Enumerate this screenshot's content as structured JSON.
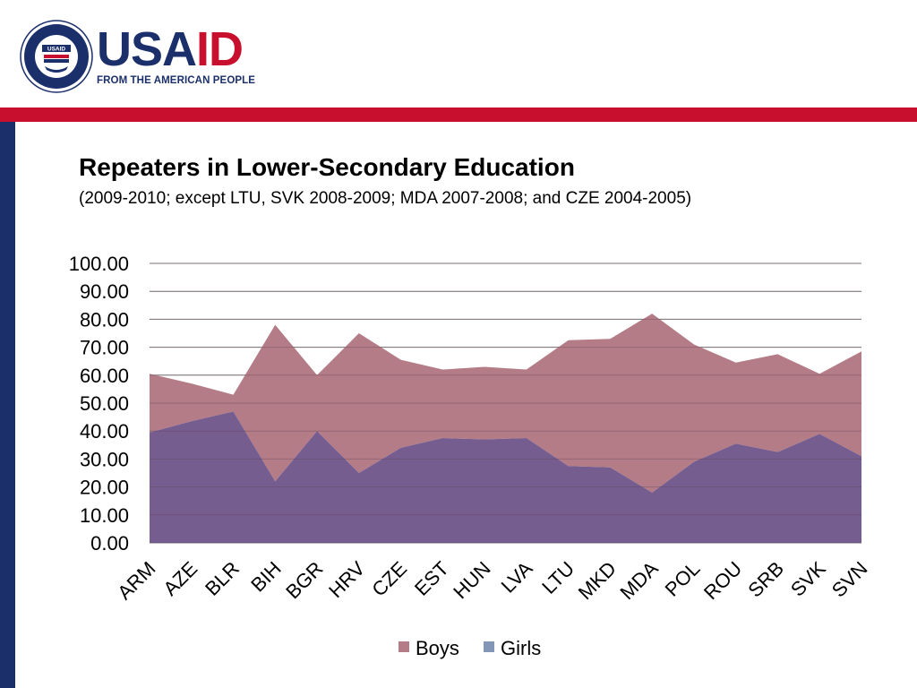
{
  "header": {
    "logo_alt": "USAID",
    "brand_usa": "USA",
    "brand_aid": "ID",
    "tagline": "FROM THE AMERICAN PEOPLE"
  },
  "colors": {
    "red": "#c8102e",
    "navy": "#1b2f6b",
    "boys": "#b47c86",
    "girls": "#765d90",
    "legend_girls": "#8496b8"
  },
  "chart_data": {
    "type": "area",
    "title": "Repeaters in Lower-Secondary Education",
    "subtitle": "(2009-2010; except LTU, SVK 2008-2009; MDA 2007-2008; and CZE 2004-2005)",
    "stacked": true,
    "categories": [
      "ARM",
      "AZE",
      "BLR",
      "BIH",
      "BGR",
      "HRV",
      "CZE",
      "EST",
      "HUN",
      "LVA",
      "LTU",
      "MKD",
      "MDA",
      "POL",
      "ROU",
      "SRB",
      "SVK",
      "SVN"
    ],
    "series": [
      {
        "name": "Girls",
        "values": [
          39.5,
          43.5,
          47.0,
          22.0,
          40.0,
          25.0,
          34.0,
          37.5,
          37.0,
          37.5,
          27.5,
          27.0,
          18.0,
          29.0,
          35.5,
          32.5,
          39.0,
          31.0
        ]
      },
      {
        "name": "Boys",
        "values": [
          21.0,
          13.5,
          6.0,
          56.0,
          20.0,
          50.0,
          31.5,
          24.5,
          26.0,
          24.5,
          45.0,
          46.0,
          64.0,
          42.0,
          29.0,
          35.0,
          21.5,
          37.5
        ]
      }
    ],
    "yticks": [
      "0.00",
      "10.00",
      "20.00",
      "30.00",
      "40.00",
      "50.00",
      "60.00",
      "70.00",
      "80.00",
      "90.00",
      "100.00"
    ],
    "ylim": [
      0,
      100
    ],
    "grid": true,
    "legend": {
      "position": "bottom",
      "entries": [
        "Boys",
        "Girls"
      ]
    }
  }
}
